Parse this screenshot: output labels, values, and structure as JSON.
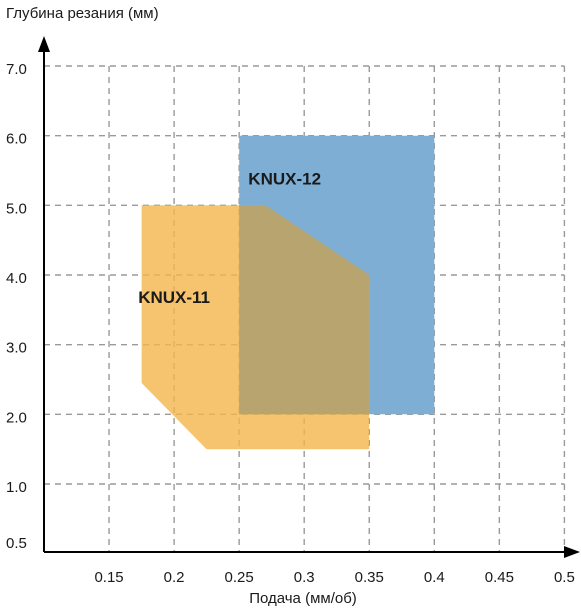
{
  "chart_data": {
    "type": "area",
    "title": "",
    "xlabel": "Подача (мм/об)",
    "ylabel": "Глубина резания (мм)",
    "xlim": [
      0.1,
      0.5
    ],
    "ylim": [
      0.5,
      7.0
    ],
    "grid": true,
    "x_ticks": [
      0.15,
      0.2,
      0.25,
      0.3,
      0.35,
      0.4,
      0.45,
      0.5
    ],
    "x_tick_labels": [
      "0.15",
      "0.2",
      "0.25",
      "0.3",
      "0.35",
      "0.4",
      "0.45",
      "0.5"
    ],
    "y_ticks": [
      0.5,
      1.0,
      2.0,
      3.0,
      4.0,
      5.0,
      6.0,
      7.0
    ],
    "y_tick_labels": [
      "0.5",
      "1.0",
      "2.0",
      "3.0",
      "4.0",
      "5.0",
      "6.0",
      "7.0"
    ],
    "series": [
      {
        "name": "KNUX-12",
        "color": "#7eaed4",
        "label_at": [
          0.285,
          5.3
        ],
        "polygon": [
          [
            0.25,
            6.0
          ],
          [
            0.4,
            6.0
          ],
          [
            0.4,
            2.0
          ],
          [
            0.25,
            2.0
          ]
        ]
      },
      {
        "name": "KNUX-11",
        "color": "#f4b54a",
        "label_at": [
          0.2,
          3.6
        ],
        "polygon": [
          [
            0.175,
            5.0
          ],
          [
            0.27,
            5.0
          ],
          [
            0.35,
            4.0
          ],
          [
            0.35,
            1.5
          ],
          [
            0.225,
            1.5
          ],
          [
            0.175,
            2.45
          ]
        ]
      }
    ],
    "overlap_color": "#b8a46e"
  }
}
